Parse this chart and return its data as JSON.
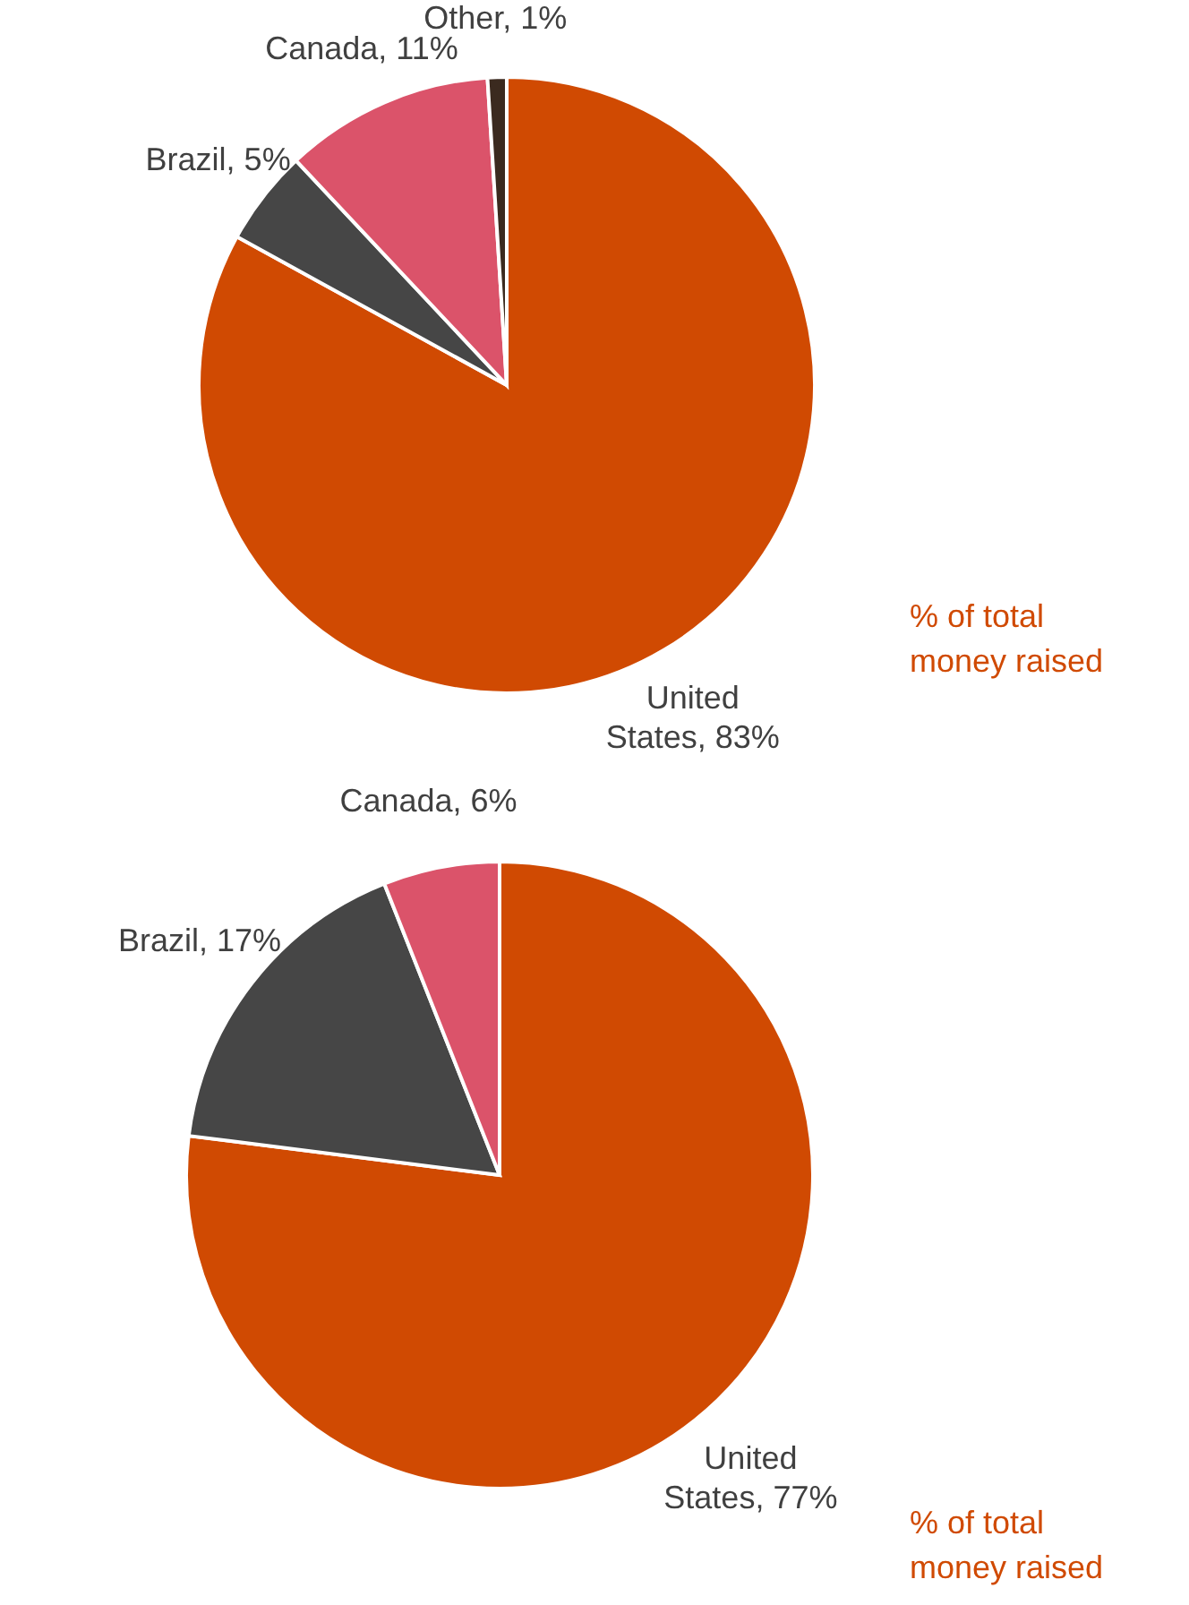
{
  "chart_data": [
    {
      "type": "pie",
      "categories": [
        "United States",
        "Brazil",
        "Canada",
        "Other"
      ],
      "values": [
        83,
        5,
        11,
        1
      ],
      "value_labels": [
        "83%",
        "5%",
        "11%",
        "1%"
      ],
      "colors": [
        "#d04a02",
        "#464646",
        "#db536a",
        "#3b2a1f"
      ],
      "annotations": [
        "% of total money raised"
      ]
    },
    {
      "type": "pie",
      "categories": [
        "United States",
        "Brazil",
        "Canada"
      ],
      "values": [
        77,
        17,
        6
      ],
      "value_labels": [
        "77%",
        "17%",
        "6%"
      ],
      "colors": [
        "#d04a02",
        "#464646",
        "#db536a"
      ],
      "annotations": [
        "% of total money raised"
      ]
    }
  ]
}
